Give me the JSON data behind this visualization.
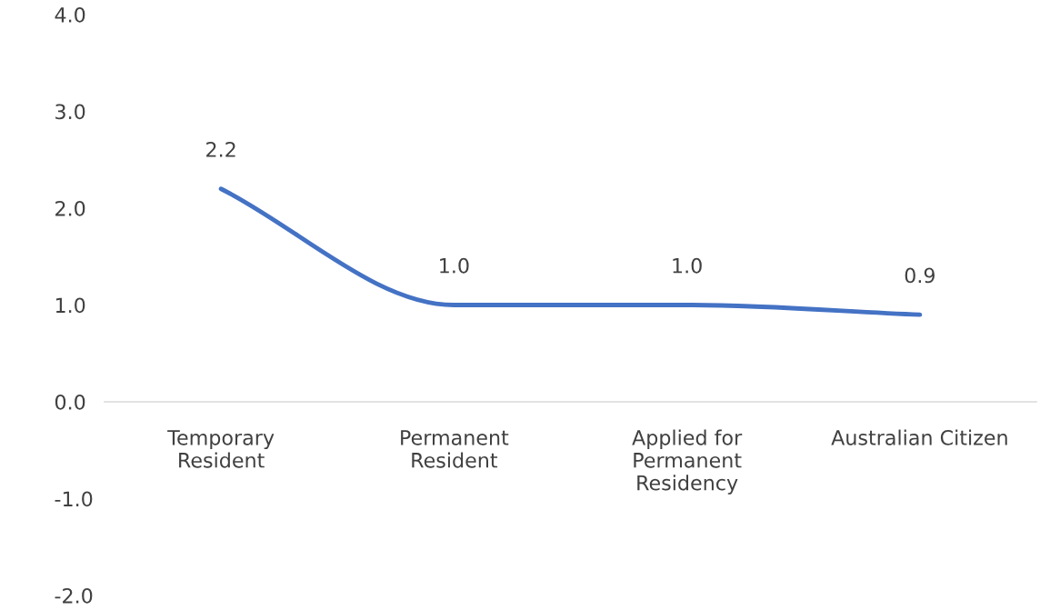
{
  "chart_data": {
    "type": "line",
    "categories": [
      "Temporary\nResident",
      "Permanent\nResident",
      "Applied for\nPermanent\nResidency",
      "Australian Citizen"
    ],
    "values": [
      2.2,
      1.0,
      1.0,
      0.9
    ],
    "color": "#4472c4",
    "value_labels": [
      "2.2",
      "1.0",
      "1.0",
      "0.9"
    ],
    "ylim": [
      -2,
      4
    ],
    "yticks": [
      {
        "value": -2,
        "label": "-2.0"
      },
      {
        "value": -1,
        "label": "-1.0"
      },
      {
        "value": 0,
        "label": "0.0"
      },
      {
        "value": 1,
        "label": "1.0"
      },
      {
        "value": 2,
        "label": "2.0"
      },
      {
        "value": 3,
        "label": "3.0"
      },
      {
        "value": 4,
        "label": "4.0"
      }
    ],
    "grid": false,
    "legend": false,
    "marker": "none",
    "line_style": "solid"
  }
}
